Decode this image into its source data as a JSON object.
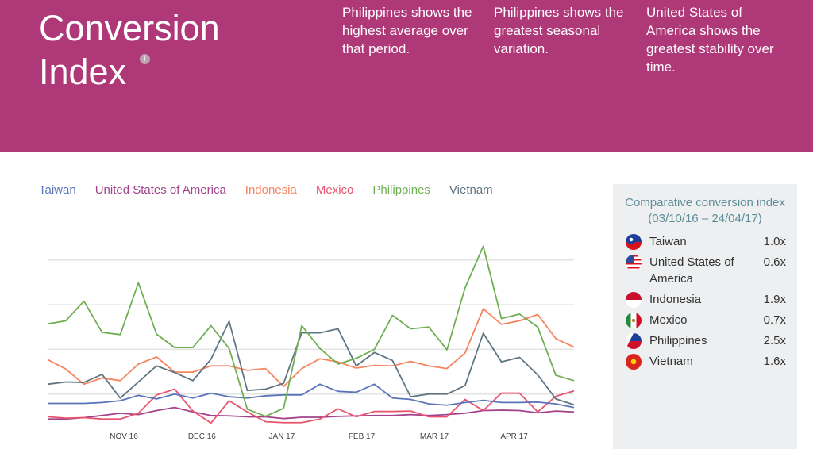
{
  "header": {
    "title": "Conversion Index",
    "info_icon": "info-icon",
    "insights": [
      "Philippines shows the highest average over that period.",
      "Philippines shows the greatest seasonal variation.",
      "United States of America shows the greatest stability over time."
    ]
  },
  "panel": {
    "title": "Comparative conversion index (03/10/16 – 24/04/17)",
    "rows": [
      {
        "name": "Taiwan",
        "value": "1.0x"
      },
      {
        "name": "United States of America",
        "value": "0.6x"
      },
      {
        "name": "Indonesia",
        "value": "1.9x"
      },
      {
        "name": "Mexico",
        "value": "0.7x"
      },
      {
        "name": "Philippines",
        "value": "2.5x"
      },
      {
        "name": "Vietnam",
        "value": "1.6x"
      }
    ]
  },
  "chart_data": {
    "type": "line",
    "title": "",
    "xlabel": "",
    "ylabel": "",
    "ylim": [
      0,
      4.4
    ],
    "grid": true,
    "legend": "top",
    "x_ticks": [
      {
        "label": "NOV 16",
        "index": 4.2
      },
      {
        "label": "DEC 16",
        "index": 8.5
      },
      {
        "label": "JAN 17",
        "index": 12.9
      },
      {
        "label": "FEB 17",
        "index": 17.3
      },
      {
        "label": "MAR 17",
        "index": 21.3
      },
      {
        "label": "APR 17",
        "index": 25.7
      }
    ],
    "gridlines": [
      1,
      2,
      3,
      4
    ],
    "series": [
      {
        "name": "Taiwan",
        "color": "#5B75B8",
        "values": [
          0.79,
          0.79,
          0.79,
          0.81,
          0.85,
          0.97,
          0.89,
          1.0,
          0.91,
          1.02,
          0.94,
          0.91,
          0.96,
          0.98,
          0.98,
          1.22,
          1.06,
          1.04,
          1.22,
          0.91,
          0.88,
          0.78,
          0.75,
          0.81,
          0.86,
          0.81,
          0.81,
          0.82,
          0.78,
          0.7
        ]
      },
      {
        "name": "United States of America",
        "color": "#A3428A",
        "values": [
          0.44,
          0.44,
          0.47,
          0.52,
          0.57,
          0.54,
          0.63,
          0.7,
          0.6,
          0.52,
          0.51,
          0.49,
          0.49,
          0.45,
          0.48,
          0.48,
          0.5,
          0.51,
          0.52,
          0.52,
          0.54,
          0.52,
          0.54,
          0.57,
          0.63,
          0.64,
          0.63,
          0.58,
          0.62,
          0.6
        ]
      },
      {
        "name": "Indonesia",
        "color": "#F5845F",
        "values": [
          1.77,
          1.56,
          1.22,
          1.36,
          1.3,
          1.67,
          1.83,
          1.49,
          1.49,
          1.63,
          1.63,
          1.53,
          1.57,
          1.17,
          1.57,
          1.79,
          1.72,
          1.58,
          1.64,
          1.63,
          1.73,
          1.63,
          1.57,
          1.92,
          2.91,
          2.56,
          2.64,
          2.78,
          2.24,
          2.05
        ]
      },
      {
        "name": "Mexico",
        "color": "#E8546F",
        "values": [
          0.49,
          0.46,
          0.47,
          0.44,
          0.44,
          0.57,
          0.98,
          1.11,
          0.62,
          0.35,
          0.85,
          0.6,
          0.38,
          0.36,
          0.36,
          0.44,
          0.67,
          0.49,
          0.61,
          0.61,
          0.62,
          0.49,
          0.49,
          0.88,
          0.63,
          1.02,
          1.02,
          0.6,
          0.95,
          1.07
        ]
      },
      {
        "name": "Philippines",
        "color": "#6FAF52",
        "values": [
          2.57,
          2.64,
          3.08,
          2.38,
          2.33,
          3.49,
          2.34,
          2.04,
          2.04,
          2.53,
          2.02,
          0.66,
          0.5,
          0.68,
          2.53,
          2.02,
          1.67,
          1.8,
          2.0,
          2.76,
          2.46,
          2.5,
          1.99,
          3.38,
          4.31,
          2.69,
          2.79,
          2.5,
          1.42,
          1.3
        ]
      },
      {
        "name": "Vietnam",
        "color": "#5F7582",
        "values": [
          1.22,
          1.27,
          1.26,
          1.44,
          0.91,
          1.27,
          1.63,
          1.48,
          1.3,
          1.78,
          2.63,
          1.08,
          1.11,
          1.24,
          2.37,
          2.37,
          2.46,
          1.63,
          1.93,
          1.75,
          0.94,
          1.0,
          1.0,
          1.19,
          2.36,
          1.72,
          1.82,
          1.43,
          0.89,
          0.76
        ]
      }
    ]
  }
}
